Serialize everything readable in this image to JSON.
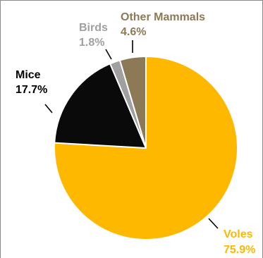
{
  "chart_data": {
    "type": "pie",
    "start_angle_deg": 0,
    "direction": "clockwise",
    "slices": [
      {
        "label": "Voles",
        "value": 75.9,
        "value_label": "75.9%",
        "color": "#FFB800",
        "label_color": "#FFB800"
      },
      {
        "label": "Mice",
        "value": 17.7,
        "value_label": "17.7%",
        "color": "#0A0A0A",
        "label_color": "#000000"
      },
      {
        "label": "Birds",
        "value": 1.8,
        "value_label": "1.8%",
        "color": "#A0A0A0",
        "label_color": "#A0A0A0"
      },
      {
        "label": "Other Mammals",
        "value": 4.6,
        "value_label": "4.6%",
        "color": "#8C7A56",
        "label_color": "#8C7A56"
      }
    ]
  }
}
